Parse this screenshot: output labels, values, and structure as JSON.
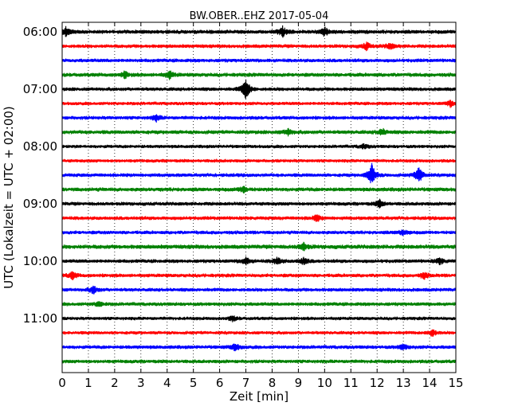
{
  "chart_data": {
    "type": "line",
    "title": "BW.OBER..EHZ 2017-05-04",
    "xlabel": "Zeit  [min]",
    "ylabel": "UTC (Lokalzeit = UTC + 02:00)",
    "xlim": [
      0,
      15
    ],
    "x_ticks": [
      "0",
      "1",
      "2",
      "3",
      "4",
      "5",
      "6",
      "7",
      "8",
      "9",
      "10",
      "11",
      "12",
      "13",
      "14",
      "15"
    ],
    "y_tick_labels": [
      "06:00",
      "07:00",
      "08:00",
      "09:00",
      "10:00",
      "11:00"
    ],
    "grid": "vertical dotted at each minute",
    "trace_colors": [
      "#000000",
      "#ff0000",
      "#0000ff",
      "#008000"
    ],
    "traces": [
      {
        "start": "06:00",
        "color": "#000000",
        "amplitude": 0.3,
        "events": [
          {
            "minute": 0.15,
            "amp": 0.7
          },
          {
            "minute": 8.4,
            "amp": 0.8
          },
          {
            "minute": 10.0,
            "amp": 0.7
          }
        ]
      },
      {
        "start": "06:15",
        "color": "#ff0000",
        "amplitude": 0.28,
        "events": [
          {
            "minute": 11.6,
            "amp": 0.6
          },
          {
            "minute": 12.5,
            "amp": 0.5
          }
        ]
      },
      {
        "start": "06:30",
        "color": "#0000ff",
        "amplitude": 0.28,
        "events": []
      },
      {
        "start": "06:45",
        "color": "#008000",
        "amplitude": 0.3,
        "events": [
          {
            "minute": 2.4,
            "amp": 0.5
          },
          {
            "minute": 4.1,
            "amp": 0.6
          }
        ]
      },
      {
        "start": "07:00",
        "color": "#000000",
        "amplitude": 0.28,
        "events": [
          {
            "minute": 7.0,
            "amp": 1.8
          }
        ]
      },
      {
        "start": "07:15",
        "color": "#ff0000",
        "amplitude": 0.26,
        "events": [
          {
            "minute": 14.8,
            "amp": 0.5
          }
        ]
      },
      {
        "start": "07:30",
        "color": "#0000ff",
        "amplitude": 0.28,
        "events": [
          {
            "minute": 3.6,
            "amp": 0.5
          }
        ]
      },
      {
        "start": "07:45",
        "color": "#008000",
        "amplitude": 0.3,
        "events": [
          {
            "minute": 8.6,
            "amp": 0.5
          },
          {
            "minute": 12.2,
            "amp": 0.5
          }
        ]
      },
      {
        "start": "08:00",
        "color": "#000000",
        "amplitude": 0.26,
        "events": [
          {
            "minute": 11.5,
            "amp": 0.4
          }
        ]
      },
      {
        "start": "08:15",
        "color": "#ff0000",
        "amplitude": 0.26,
        "events": []
      },
      {
        "start": "08:30",
        "color": "#0000ff",
        "amplitude": 0.28,
        "events": [
          {
            "minute": 11.8,
            "amp": 1.8
          },
          {
            "minute": 13.6,
            "amp": 1.3
          }
        ]
      },
      {
        "start": "08:45",
        "color": "#008000",
        "amplitude": 0.3,
        "events": [
          {
            "minute": 6.9,
            "amp": 0.5
          }
        ]
      },
      {
        "start": "09:00",
        "color": "#000000",
        "amplitude": 0.28,
        "events": [
          {
            "minute": 12.1,
            "amp": 0.6
          }
        ]
      },
      {
        "start": "09:15",
        "color": "#ff0000",
        "amplitude": 0.28,
        "events": [
          {
            "minute": 9.7,
            "amp": 0.5
          }
        ]
      },
      {
        "start": "09:30",
        "color": "#0000ff",
        "amplitude": 0.28,
        "events": [
          {
            "minute": 13.0,
            "amp": 0.5
          }
        ]
      },
      {
        "start": "09:45",
        "color": "#008000",
        "amplitude": 0.32,
        "events": [
          {
            "minute": 9.2,
            "amp": 0.6
          }
        ]
      },
      {
        "start": "10:00",
        "color": "#000000",
        "amplitude": 0.28,
        "events": [
          {
            "minute": 7.0,
            "amp": 0.6
          },
          {
            "minute": 8.2,
            "amp": 0.6
          },
          {
            "minute": 9.2,
            "amp": 0.6
          },
          {
            "minute": 14.4,
            "amp": 0.5
          }
        ]
      },
      {
        "start": "10:15",
        "color": "#ff0000",
        "amplitude": 0.28,
        "events": [
          {
            "minute": 0.4,
            "amp": 0.6
          },
          {
            "minute": 13.8,
            "amp": 0.5
          }
        ]
      },
      {
        "start": "10:30",
        "color": "#0000ff",
        "amplitude": 0.28,
        "events": [
          {
            "minute": 1.2,
            "amp": 0.6
          }
        ]
      },
      {
        "start": "10:45",
        "color": "#008000",
        "amplitude": 0.28,
        "events": [
          {
            "minute": 1.4,
            "amp": 0.4
          }
        ]
      },
      {
        "start": "11:00",
        "color": "#000000",
        "amplitude": 0.26,
        "events": [
          {
            "minute": 6.5,
            "amp": 0.4
          }
        ]
      },
      {
        "start": "11:15",
        "color": "#ff0000",
        "amplitude": 0.26,
        "events": [
          {
            "minute": 14.1,
            "amp": 0.6
          }
        ]
      },
      {
        "start": "11:30",
        "color": "#0000ff",
        "amplitude": 0.28,
        "events": [
          {
            "minute": 6.6,
            "amp": 0.6
          },
          {
            "minute": 13.0,
            "amp": 0.5
          }
        ]
      },
      {
        "start": "11:45",
        "color": "#008000",
        "amplitude": 0.28,
        "events": []
      }
    ]
  }
}
